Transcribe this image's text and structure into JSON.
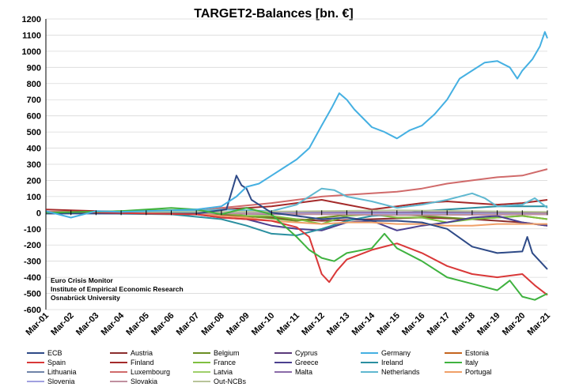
{
  "chart_data": {
    "type": "line",
    "title": "TARGET2-Balances [bn. €]",
    "xlabel": "",
    "ylabel": "",
    "ylim": [
      -600,
      1200
    ],
    "y_ticks": [
      -600,
      -500,
      -400,
      -300,
      -200,
      -100,
      0,
      100,
      200,
      300,
      400,
      500,
      600,
      700,
      800,
      900,
      1000,
      1100,
      1200
    ],
    "categories": [
      "Mar-01",
      "Mar-02",
      "Mar-03",
      "Mar-04",
      "Mar-05",
      "Mar-06",
      "Mar-07",
      "Mar-08",
      "Mar-09",
      "Mar-10",
      "Mar-11",
      "Mar-12",
      "Mar-13",
      "Mar-14",
      "Mar-15",
      "Mar-16",
      "Mar-17",
      "Mar-18",
      "Mar-19",
      "Mar-20",
      "Mar-21"
    ],
    "x_range": [
      2001.0,
      2021.0
    ],
    "annotation": [
      "Euro Crisis Monitor",
      "Institute of Empirical Economic Research",
      "Osnabrück University"
    ],
    "legend_position": "bottom",
    "series": [
      {
        "name": "ECB",
        "color": "#2e4a87",
        "points": [
          [
            2001,
            -5
          ],
          [
            2007,
            -5
          ],
          [
            2008.2,
            20
          ],
          [
            2008.6,
            230
          ],
          [
            2008.8,
            170
          ],
          [
            2009.0,
            150
          ],
          [
            2009.2,
            80
          ],
          [
            2010,
            0
          ],
          [
            2011,
            -20
          ],
          [
            2012,
            -40
          ],
          [
            2013,
            -30
          ],
          [
            2014,
            -50
          ],
          [
            2015,
            -50
          ],
          [
            2016,
            -60
          ],
          [
            2017,
            -100
          ],
          [
            2018,
            -210
          ],
          [
            2019,
            -250
          ],
          [
            2020,
            -240
          ],
          [
            2020.2,
            -150
          ],
          [
            2020.4,
            -250
          ],
          [
            2021,
            -350
          ]
        ]
      },
      {
        "name": "Austria",
        "color": "#8b2e2e",
        "points": [
          [
            2001,
            0
          ],
          [
            2007,
            -10
          ],
          [
            2010,
            -30
          ],
          [
            2012,
            -50
          ],
          [
            2014,
            -40
          ],
          [
            2016,
            -30
          ],
          [
            2018,
            -40
          ],
          [
            2020,
            -60
          ],
          [
            2021,
            -80
          ]
        ]
      },
      {
        "name": "Belgium",
        "color": "#6b8e23",
        "points": [
          [
            2001,
            5
          ],
          [
            2007,
            5
          ],
          [
            2009,
            -20
          ],
          [
            2011,
            -50
          ],
          [
            2012,
            -30
          ],
          [
            2014,
            0
          ],
          [
            2016,
            -20
          ],
          [
            2018,
            -40
          ],
          [
            2020,
            -20
          ],
          [
            2021,
            -40
          ]
        ]
      },
      {
        "name": "Cyprus",
        "color": "#5a3a7a",
        "points": [
          [
            2001,
            0
          ],
          [
            2008,
            -5
          ],
          [
            2011,
            -10
          ],
          [
            2013,
            -5
          ],
          [
            2015,
            -5
          ],
          [
            2021,
            0
          ]
        ]
      },
      {
        "name": "Germany",
        "color": "#45b0e2",
        "points": [
          [
            2001,
            10
          ],
          [
            2002,
            -30
          ],
          [
            2003,
            10
          ],
          [
            2004,
            5
          ],
          [
            2005,
            10
          ],
          [
            2006,
            15
          ],
          [
            2007,
            20
          ],
          [
            2008,
            40
          ],
          [
            2008.6,
            100
          ],
          [
            2009.0,
            160
          ],
          [
            2009.5,
            180
          ],
          [
            2010,
            230
          ],
          [
            2010.5,
            280
          ],
          [
            2011,
            330
          ],
          [
            2011.5,
            400
          ],
          [
            2012,
            540
          ],
          [
            2012.4,
            650
          ],
          [
            2012.7,
            740
          ],
          [
            2013,
            700
          ],
          [
            2013.3,
            640
          ],
          [
            2014,
            530
          ],
          [
            2014.5,
            500
          ],
          [
            2015,
            460
          ],
          [
            2015.5,
            510
          ],
          [
            2016,
            540
          ],
          [
            2016.5,
            610
          ],
          [
            2017,
            700
          ],
          [
            2017.5,
            830
          ],
          [
            2018,
            880
          ],
          [
            2018.5,
            930
          ],
          [
            2019,
            940
          ],
          [
            2019.5,
            900
          ],
          [
            2019.8,
            830
          ],
          [
            2020,
            880
          ],
          [
            2020.4,
            950
          ],
          [
            2020.7,
            1030
          ],
          [
            2020.9,
            1120
          ],
          [
            2021,
            1080
          ]
        ]
      },
      {
        "name": "Estonia",
        "color": "#c5651f",
        "points": [
          [
            2001,
            0
          ],
          [
            2011,
            0
          ],
          [
            2012,
            -2
          ],
          [
            2021,
            -5
          ]
        ]
      },
      {
        "name": "Spain",
        "color": "#d93838",
        "points": [
          [
            2001,
            0
          ],
          [
            2002,
            5
          ],
          [
            2005,
            -5
          ],
          [
            2007,
            -10
          ],
          [
            2008,
            -30
          ],
          [
            2009,
            -40
          ],
          [
            2010,
            -50
          ],
          [
            2011,
            -90
          ],
          [
            2011.5,
            -150
          ],
          [
            2012,
            -380
          ],
          [
            2012.3,
            -430
          ],
          [
            2012.6,
            -360
          ],
          [
            2013,
            -290
          ],
          [
            2014,
            -230
          ],
          [
            2015,
            -190
          ],
          [
            2016,
            -250
          ],
          [
            2017,
            -330
          ],
          [
            2018,
            -380
          ],
          [
            2019,
            -400
          ],
          [
            2020,
            -380
          ],
          [
            2020.5,
            -450
          ],
          [
            2021,
            -510
          ]
        ]
      },
      {
        "name": "Finland",
        "color": "#a42a2a",
        "points": [
          [
            2001,
            20
          ],
          [
            2003,
            10
          ],
          [
            2006,
            5
          ],
          [
            2008,
            20
          ],
          [
            2010,
            40
          ],
          [
            2011,
            60
          ],
          [
            2012,
            80
          ],
          [
            2013,
            50
          ],
          [
            2014,
            20
          ],
          [
            2015,
            40
          ],
          [
            2016,
            60
          ],
          [
            2017,
            70
          ],
          [
            2018,
            60
          ],
          [
            2019,
            50
          ],
          [
            2020,
            60
          ],
          [
            2021,
            80
          ]
        ]
      },
      {
        "name": "France",
        "color": "#7fbf3f",
        "points": [
          [
            2001,
            0
          ],
          [
            2004,
            10
          ],
          [
            2007,
            20
          ],
          [
            2008,
            0
          ],
          [
            2009,
            -20
          ],
          [
            2010,
            -20
          ],
          [
            2011,
            -40
          ],
          [
            2012,
            -70
          ],
          [
            2013,
            -20
          ],
          [
            2014,
            -10
          ],
          [
            2015,
            -30
          ],
          [
            2016,
            -30
          ],
          [
            2017,
            -60
          ],
          [
            2018,
            -40
          ],
          [
            2019,
            -30
          ],
          [
            2020,
            -20
          ],
          [
            2021,
            -40
          ]
        ]
      },
      {
        "name": "Greece",
        "color": "#4a3f8f",
        "points": [
          [
            2001,
            0
          ],
          [
            2007,
            -10
          ],
          [
            2008,
            -30
          ],
          [
            2009,
            -40
          ],
          [
            2010,
            -80
          ],
          [
            2011,
            -100
          ],
          [
            2012,
            -110
          ],
          [
            2013,
            -60
          ],
          [
            2014,
            -50
          ],
          [
            2015,
            -110
          ],
          [
            2016,
            -80
          ],
          [
            2017,
            -60
          ],
          [
            2018,
            -30
          ],
          [
            2019,
            -20
          ],
          [
            2020,
            -60
          ],
          [
            2021,
            -80
          ]
        ]
      },
      {
        "name": "Ireland",
        "color": "#2a8fa0",
        "points": [
          [
            2001,
            0
          ],
          [
            2006,
            -10
          ],
          [
            2008,
            -40
          ],
          [
            2009,
            -80
          ],
          [
            2010,
            -130
          ],
          [
            2011,
            -140
          ],
          [
            2012,
            -100
          ],
          [
            2013,
            -50
          ],
          [
            2014,
            -20
          ],
          [
            2015,
            -10
          ],
          [
            2016,
            10
          ],
          [
            2017,
            20
          ],
          [
            2018,
            30
          ],
          [
            2019,
            40
          ],
          [
            2020,
            40
          ],
          [
            2021,
            40
          ]
        ]
      },
      {
        "name": "Italy",
        "color": "#3fb23f",
        "points": [
          [
            2001,
            0
          ],
          [
            2004,
            10
          ],
          [
            2006,
            30
          ],
          [
            2007,
            20
          ],
          [
            2008,
            -10
          ],
          [
            2009,
            30
          ],
          [
            2010,
            -10
          ],
          [
            2011,
            -150
          ],
          [
            2011.5,
            -230
          ],
          [
            2012,
            -280
          ],
          [
            2012.5,
            -300
          ],
          [
            2013,
            -250
          ],
          [
            2014,
            -220
          ],
          [
            2014.5,
            -130
          ],
          [
            2015,
            -220
          ],
          [
            2016,
            -300
          ],
          [
            2017,
            -400
          ],
          [
            2018,
            -440
          ],
          [
            2019,
            -480
          ],
          [
            2019.5,
            -420
          ],
          [
            2020,
            -520
          ],
          [
            2020.5,
            -540
          ],
          [
            2021,
            -500
          ]
        ]
      },
      {
        "name": "Lithuania",
        "color": "#6f83a8",
        "points": [
          [
            2001,
            0
          ],
          [
            2014,
            0
          ],
          [
            2015,
            -5
          ],
          [
            2021,
            -10
          ]
        ]
      },
      {
        "name": "Luxembourg",
        "color": "#d06a6a",
        "points": [
          [
            2001,
            5
          ],
          [
            2004,
            0
          ],
          [
            2007,
            10
          ],
          [
            2008,
            30
          ],
          [
            2010,
            60
          ],
          [
            2011,
            80
          ],
          [
            2012,
            100
          ],
          [
            2013,
            110
          ],
          [
            2014,
            120
          ],
          [
            2015,
            130
          ],
          [
            2016,
            150
          ],
          [
            2017,
            180
          ],
          [
            2018,
            200
          ],
          [
            2019,
            220
          ],
          [
            2020,
            230
          ],
          [
            2021,
            270
          ]
        ]
      },
      {
        "name": "Latvia",
        "color": "#9fcf6a",
        "points": [
          [
            2001,
            0
          ],
          [
            2013,
            0
          ],
          [
            2014,
            -3
          ],
          [
            2021,
            -8
          ]
        ]
      },
      {
        "name": "Malta",
        "color": "#8a6aa8",
        "points": [
          [
            2001,
            0
          ],
          [
            2007,
            0
          ],
          [
            2008,
            2
          ],
          [
            2021,
            3
          ]
        ]
      },
      {
        "name": "Netherlands",
        "color": "#5fb8d0",
        "points": [
          [
            2001,
            -5
          ],
          [
            2005,
            0
          ],
          [
            2008,
            20
          ],
          [
            2010,
            10
          ],
          [
            2011,
            50
          ],
          [
            2012,
            150
          ],
          [
            2012.5,
            140
          ],
          [
            2013,
            100
          ],
          [
            2014,
            70
          ],
          [
            2015,
            30
          ],
          [
            2016,
            50
          ],
          [
            2017,
            80
          ],
          [
            2018,
            120
          ],
          [
            2018.5,
            90
          ],
          [
            2019,
            40
          ],
          [
            2020,
            50
          ],
          [
            2020.5,
            90
          ],
          [
            2021,
            30
          ]
        ]
      },
      {
        "name": "Portugal",
        "color": "#f0a068",
        "points": [
          [
            2001,
            0
          ],
          [
            2007,
            -5
          ],
          [
            2008,
            -20
          ],
          [
            2009,
            -30
          ],
          [
            2010,
            -50
          ],
          [
            2011,
            -60
          ],
          [
            2012,
            -70
          ],
          [
            2013,
            -60
          ],
          [
            2014,
            -60
          ],
          [
            2015,
            -70
          ],
          [
            2016,
            -70
          ],
          [
            2017,
            -80
          ],
          [
            2018,
            -80
          ],
          [
            2019,
            -70
          ],
          [
            2020,
            -70
          ],
          [
            2021,
            -70
          ]
        ]
      },
      {
        "name": "Slovenia",
        "color": "#a0a0e0",
        "points": [
          [
            2001,
            0
          ],
          [
            2008,
            -3
          ],
          [
            2012,
            -5
          ],
          [
            2021,
            -8
          ]
        ]
      },
      {
        "name": "Slovakia",
        "color": "#c0909f",
        "points": [
          [
            2001,
            0
          ],
          [
            2009,
            -5
          ],
          [
            2012,
            -10
          ],
          [
            2015,
            -15
          ],
          [
            2021,
            -10
          ]
        ]
      },
      {
        "name": "Out-NCBs",
        "color": "#b8c49a",
        "points": [
          [
            2001,
            0
          ],
          [
            2008,
            5
          ],
          [
            2012,
            10
          ],
          [
            2015,
            15
          ],
          [
            2018,
            10
          ],
          [
            2021,
            5
          ]
        ]
      }
    ]
  }
}
